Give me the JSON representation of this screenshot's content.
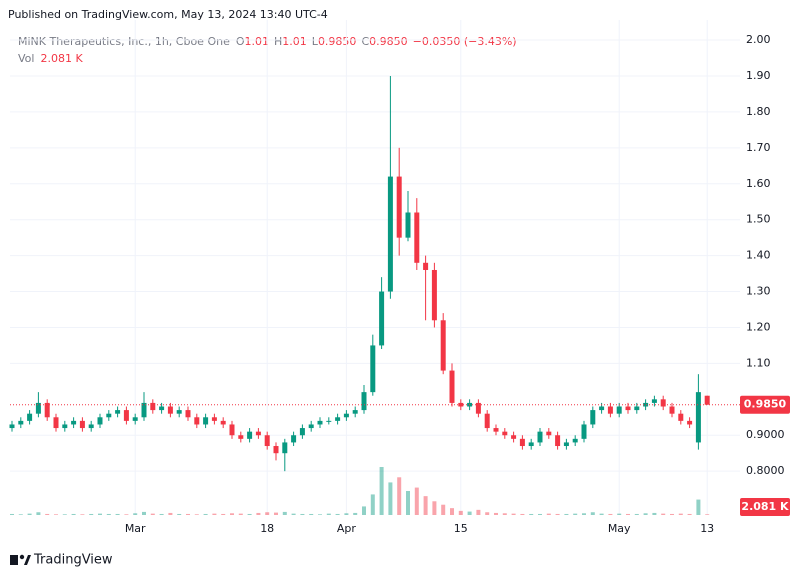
{
  "header": {
    "published": "Published on TradingView.com, May 13, 2024 13:40 UTC-4"
  },
  "footer": {
    "brand": "TradingView"
  },
  "chart_data": {
    "type": "candlestick",
    "legend": {
      "name": "MiNK Therapeutics, Inc., 1h, Cboe One",
      "o_label": "O",
      "o": "1.01",
      "h_label": "H",
      "h": "1.01",
      "l_label": "L",
      "l": "0.9850",
      "c_label": "C",
      "c": "0.9850",
      "change": "−0.0350 (−3.43%)",
      "vol_label": "Vol",
      "vol": "2.081 K"
    },
    "up_color": "#089981",
    "down_color": "#f23645",
    "x": [
      null,
      null,
      null,
      null,
      null,
      null,
      null,
      null,
      null,
      null,
      null,
      null,
      null,
      null,
      "Mar",
      null,
      null,
      null,
      null,
      null,
      null,
      null,
      null,
      null,
      null,
      null,
      null,
      null,
      null,
      "18",
      null,
      null,
      null,
      null,
      null,
      null,
      null,
      null,
      "Apr",
      null,
      null,
      null,
      null,
      null,
      null,
      null,
      null,
      null,
      null,
      null,
      null,
      "15",
      null,
      null,
      null,
      null,
      null,
      null,
      null,
      null,
      null,
      null,
      null,
      null,
      null,
      null,
      null,
      null,
      null,
      "May",
      null,
      null,
      null,
      null,
      null,
      null,
      null,
      null,
      null,
      "13"
    ],
    "open": [
      0.92,
      0.93,
      0.94,
      0.96,
      0.99,
      0.95,
      0.92,
      0.93,
      0.94,
      0.92,
      0.93,
      0.95,
      0.96,
      0.97,
      0.94,
      0.95,
      0.99,
      0.97,
      0.98,
      0.96,
      0.97,
      0.95,
      0.93,
      0.95,
      0.94,
      0.93,
      0.9,
      0.89,
      0.91,
      0.9,
      0.87,
      0.85,
      0.88,
      0.9,
      0.92,
      0.93,
      0.94,
      0.94,
      0.95,
      0.96,
      0.97,
      1.02,
      1.15,
      1.3,
      1.62,
      1.45,
      1.52,
      1.38,
      1.36,
      1.22,
      1.08,
      0.99,
      0.98,
      0.99,
      0.96,
      0.92,
      0.91,
      0.9,
      0.89,
      0.87,
      0.88,
      0.91,
      0.9,
      0.87,
      0.88,
      0.89,
      0.93,
      0.97,
      0.98,
      0.96,
      0.98,
      0.97,
      0.98,
      0.99,
      1.0,
      0.98,
      0.96,
      0.94,
      0.88,
      1.01
    ],
    "high": [
      0.94,
      0.95,
      0.97,
      1.02,
      1.0,
      0.96,
      0.94,
      0.95,
      0.95,
      0.94,
      0.96,
      0.97,
      0.98,
      0.98,
      0.96,
      1.02,
      1.0,
      0.99,
      0.99,
      0.98,
      0.98,
      0.96,
      0.96,
      0.96,
      0.95,
      0.94,
      0.91,
      0.92,
      0.92,
      0.91,
      0.88,
      0.89,
      0.91,
      0.93,
      0.94,
      0.95,
      0.95,
      0.96,
      0.97,
      0.98,
      1.04,
      1.18,
      1.34,
      1.9,
      1.7,
      1.58,
      1.56,
      1.4,
      1.38,
      1.24,
      1.1,
      1.0,
      1.0,
      1.0,
      0.97,
      0.93,
      0.92,
      0.91,
      0.9,
      0.89,
      0.92,
      0.92,
      0.91,
      0.89,
      0.9,
      0.94,
      0.98,
      0.99,
      0.99,
      0.99,
      0.99,
      0.99,
      1.0,
      1.01,
      1.01,
      0.99,
      0.97,
      0.95,
      1.07,
      1.01
    ],
    "low": [
      0.91,
      0.92,
      0.93,
      0.95,
      0.94,
      0.91,
      0.91,
      0.92,
      0.91,
      0.91,
      0.92,
      0.94,
      0.95,
      0.93,
      0.93,
      0.94,
      0.96,
      0.96,
      0.95,
      0.95,
      0.94,
      0.92,
      0.92,
      0.93,
      0.92,
      0.89,
      0.88,
      0.88,
      0.89,
      0.86,
      0.83,
      0.8,
      0.87,
      0.89,
      0.91,
      0.92,
      0.93,
      0.93,
      0.94,
      0.95,
      0.96,
      1.01,
      1.14,
      1.28,
      1.4,
      1.44,
      1.36,
      1.22,
      1.2,
      1.07,
      0.98,
      0.97,
      0.97,
      0.95,
      0.91,
      0.9,
      0.89,
      0.88,
      0.86,
      0.86,
      0.87,
      0.89,
      0.86,
      0.86,
      0.87,
      0.88,
      0.92,
      0.96,
      0.95,
      0.95,
      0.96,
      0.96,
      0.97,
      0.98,
      0.97,
      0.95,
      0.93,
      0.92,
      0.86,
      0.985
    ],
    "close": [
      0.93,
      0.94,
      0.96,
      0.99,
      0.95,
      0.92,
      0.93,
      0.94,
      0.92,
      0.93,
      0.95,
      0.96,
      0.97,
      0.94,
      0.95,
      0.99,
      0.97,
      0.98,
      0.96,
      0.97,
      0.95,
      0.93,
      0.95,
      0.94,
      0.93,
      0.9,
      0.89,
      0.91,
      0.9,
      0.87,
      0.85,
      0.88,
      0.9,
      0.92,
      0.93,
      0.94,
      0.94,
      0.95,
      0.96,
      0.97,
      1.02,
      1.15,
      1.3,
      1.62,
      1.45,
      1.52,
      1.38,
      1.36,
      1.22,
      1.08,
      0.99,
      0.98,
      0.99,
      0.96,
      0.92,
      0.91,
      0.9,
      0.89,
      0.87,
      0.88,
      0.91,
      0.9,
      0.87,
      0.88,
      0.89,
      0.93,
      0.97,
      0.98,
      0.96,
      0.98,
      0.97,
      0.98,
      0.99,
      1.0,
      0.98,
      0.96,
      0.94,
      0.93,
      1.02,
      0.985
    ],
    "volume": [
      3,
      2,
      4,
      8,
      3,
      2,
      2,
      3,
      2,
      3,
      4,
      3,
      3,
      2,
      5,
      9,
      4,
      3,
      6,
      3,
      3,
      2,
      3,
      4,
      3,
      5,
      4,
      3,
      6,
      8,
      7,
      9,
      4,
      3,
      3,
      2,
      4,
      3,
      5,
      6,
      25,
      60,
      140,
      95,
      110,
      70,
      80,
      55,
      40,
      30,
      20,
      12,
      10,
      15,
      8,
      6,
      5,
      4,
      3,
      3,
      3,
      4,
      3,
      3,
      4,
      5,
      8,
      4,
      3,
      4,
      3,
      3,
      5,
      6,
      4,
      3,
      4,
      3,
      45,
      2.081
    ],
    "ylim": [
      0.678,
      2.028
    ],
    "yticks": [
      {
        "value": 2.0,
        "label": "2.00"
      },
      {
        "value": 1.9,
        "label": "1.90"
      },
      {
        "value": 1.8,
        "label": "1.80"
      },
      {
        "value": 1.7,
        "label": "1.70"
      },
      {
        "value": 1.6,
        "label": "1.60"
      },
      {
        "value": 1.5,
        "label": "1.50"
      },
      {
        "value": 1.4,
        "label": "1.40"
      },
      {
        "value": 1.3,
        "label": "1.30"
      },
      {
        "value": 1.2,
        "label": "1.20"
      },
      {
        "value": 1.1,
        "label": "1.10"
      },
      {
        "value": 0.9,
        "label": "0.9000"
      },
      {
        "value": 0.8,
        "label": "0.8000"
      }
    ],
    "grid": true
  }
}
